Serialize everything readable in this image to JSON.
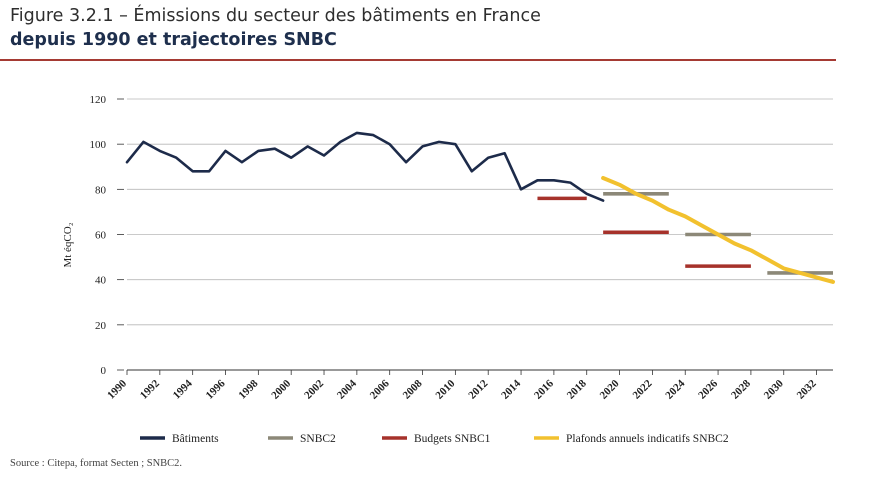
{
  "header": {
    "title_line1": "Figure 3.2.1 – Émissions du secteur des bâtiments en France",
    "title_line2": "depuis 1990 et trajectoires SNBC"
  },
  "source": "Source : Citepa, format Secten ; SNBC2.",
  "chart_data": {
    "type": "line",
    "title": "Figure 3.2.1 – Émissions du secteur des bâtiments en France depuis 1990 et trajectoires SNBC",
    "ylabel": "Mt éqCO₂",
    "xlabel": "",
    "xlim": [
      1990,
      2033
    ],
    "ylim": [
      0,
      120
    ],
    "yticks": [
      0,
      20,
      40,
      60,
      80,
      100,
      120
    ],
    "xticks": [
      1990,
      1992,
      1994,
      1996,
      1998,
      2000,
      2002,
      2004,
      2006,
      2008,
      2010,
      2012,
      2014,
      2016,
      2018,
      2020,
      2022,
      2024,
      2026,
      2028,
      2030,
      2032
    ],
    "grid": "horizontal",
    "legend_position": "bottom",
    "colors": {
      "batiments": "#1d2b4a",
      "snbc2": "#8c8878",
      "snbc1": "#a6322b",
      "plafonds": "#f2c12e"
    },
    "series": [
      {
        "key": "batiments",
        "name": "Bâtiments",
        "kind": "line",
        "x": [
          1990,
          1991,
          1992,
          1993,
          1994,
          1995,
          1996,
          1997,
          1998,
          1999,
          2000,
          2001,
          2002,
          2003,
          2004,
          2005,
          2006,
          2007,
          2008,
          2009,
          2010,
          2011,
          2012,
          2013,
          2014,
          2015,
          2016,
          2017,
          2018,
          2019
        ],
        "y": [
          92,
          101,
          97,
          94,
          88,
          88,
          97,
          92,
          97,
          98,
          94,
          99,
          95,
          101,
          105,
          104,
          100,
          92,
          99,
          101,
          100,
          88,
          94,
          96,
          80,
          84,
          84,
          83,
          78,
          75
        ]
      },
      {
        "key": "snbc2",
        "name": "SNBC2",
        "kind": "budget",
        "segments": [
          {
            "from": 2019,
            "to": 2023,
            "value": 78
          },
          {
            "from": 2024,
            "to": 2028,
            "value": 60
          },
          {
            "from": 2029,
            "to": 2033,
            "value": 43
          }
        ]
      },
      {
        "key": "snbc1",
        "name": "Budgets SNBC1",
        "kind": "budget",
        "segments": [
          {
            "from": 2015,
            "to": 2018,
            "value": 76
          },
          {
            "from": 2019,
            "to": 2023,
            "value": 61
          },
          {
            "from": 2024,
            "to": 2028,
            "value": 46
          }
        ]
      },
      {
        "key": "plafonds",
        "name": "Plafonds annuels indicatifs SNBC2",
        "kind": "line",
        "x": [
          2019,
          2020,
          2021,
          2022,
          2023,
          2024,
          2025,
          2026,
          2027,
          2028,
          2029,
          2030,
          2031,
          2032,
          2033
        ],
        "y": [
          85,
          82,
          78,
          75,
          71,
          68,
          64,
          60,
          56,
          53,
          49,
          45,
          43,
          41,
          39
        ]
      }
    ]
  }
}
